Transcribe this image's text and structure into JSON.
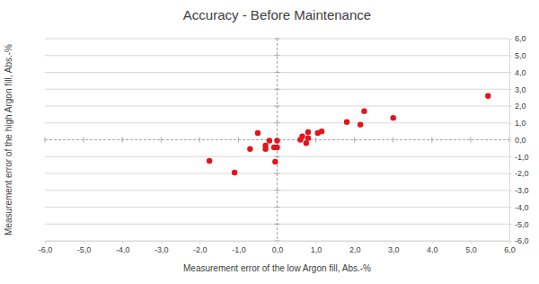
{
  "chart_data": {
    "type": "scatter",
    "title": "Accuracy - Before Maintenance",
    "x_label": "Measurement error of the low Argon fill, Abs.-%",
    "y_label": "Measurement error of the high Argon fill, Abs.-%",
    "x": [
      -1.75,
      -1.1,
      -0.7,
      -0.5,
      -0.3,
      -0.3,
      -0.2,
      -0.05,
      0.0,
      0.0,
      -0.08,
      0.6,
      0.65,
      0.75,
      0.8,
      0.8,
      1.05,
      1.15,
      1.8,
      2.15,
      2.25,
      3.0,
      5.45
    ],
    "values": [
      -1.25,
      -1.95,
      -0.55,
      0.4,
      -0.35,
      -0.55,
      -0.05,
      -1.3,
      -0.45,
      -0.05,
      -0.45,
      0.0,
      0.2,
      -0.2,
      0.45,
      0.1,
      0.4,
      0.5,
      1.05,
      0.9,
      1.7,
      1.3,
      2.6
    ],
    "color": "#e3141b",
    "marker": "circle",
    "xlim": [
      -6,
      6
    ],
    "ylim": [
      -6,
      6
    ],
    "xticks": [
      {
        "value": -6,
        "label": "-6,0"
      },
      {
        "value": -5,
        "label": "-5,0"
      },
      {
        "value": -4,
        "label": "-4,0"
      },
      {
        "value": -3,
        "label": "-3,0"
      },
      {
        "value": -2,
        "label": "-2,0"
      },
      {
        "value": -1,
        "label": "-1,0"
      },
      {
        "value": 0,
        "label": "0,0"
      },
      {
        "value": 1,
        "label": "1,0"
      },
      {
        "value": 2,
        "label": "2,0"
      },
      {
        "value": 3,
        "label": "3,0"
      },
      {
        "value": 4,
        "label": "4,0"
      },
      {
        "value": 5,
        "label": "5,0"
      },
      {
        "value": 6,
        "label": "6,0"
      }
    ],
    "yticks": [
      {
        "value": -6,
        "label": "-6,0"
      },
      {
        "value": -5,
        "label": "-5,0"
      },
      {
        "value": -4,
        "label": "-4,0"
      },
      {
        "value": -3,
        "label": "-3,0"
      },
      {
        "value": -2,
        "label": "-2,0"
      },
      {
        "value": -1,
        "label": "-1,0"
      },
      {
        "value": 0,
        "label": "0,0"
      },
      {
        "value": 1,
        "label": "1,0"
      },
      {
        "value": 2,
        "label": "2,0"
      },
      {
        "value": 3,
        "label": "3,0"
      },
      {
        "value": 4,
        "label": "4,0"
      },
      {
        "value": 5,
        "label": "5,0"
      },
      {
        "value": 6,
        "label": "6,0"
      }
    ],
    "grid": true
  }
}
